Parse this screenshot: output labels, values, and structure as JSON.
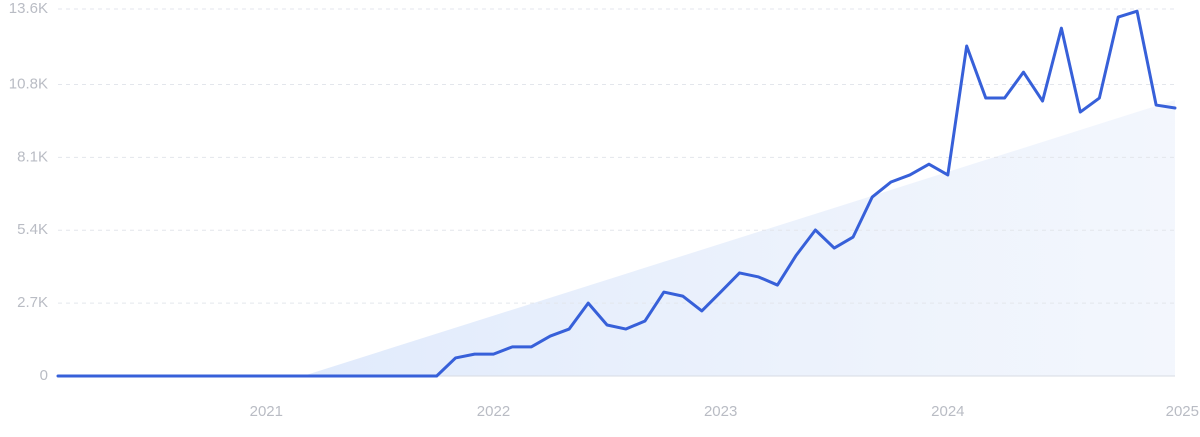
{
  "chart_data": {
    "type": "line",
    "color": "#3760d9",
    "x": [
      2020.083,
      2020.167,
      2020.25,
      2020.333,
      2020.417,
      2020.5,
      2020.583,
      2020.667,
      2020.75,
      2020.833,
      2020.917,
      2021,
      2021.083,
      2021.167,
      2021.25,
      2021.333,
      2021.417,
      2021.5,
      2021.583,
      2021.667,
      2021.75,
      2021.833,
      2021.917,
      2022,
      2022.083,
      2022.167,
      2022.25,
      2022.333,
      2022.417,
      2022.5,
      2022.583,
      2022.667,
      2022.75,
      2022.833,
      2022.917,
      2023,
      2023.083,
      2023.167,
      2023.25,
      2023.333,
      2023.417,
      2023.5,
      2023.583,
      2023.667,
      2023.75,
      2023.833,
      2023.917,
      2024,
      2024.083,
      2024.167,
      2024.25,
      2024.333,
      2024.417,
      2024.5,
      2024.583,
      2024.667,
      2024.75,
      2024.833,
      2024.917,
      2025
    ],
    "values": [
      0,
      0,
      0,
      0,
      0,
      0,
      0,
      0,
      0,
      0,
      0,
      0,
      0,
      0,
      0,
      0,
      0,
      0,
      0,
      0,
      0,
      670,
      810,
      810,
      1080,
      1080,
      1480,
      1740,
      2700,
      1890,
      1740,
      2040,
      3110,
      2960,
      2410,
      3110,
      3820,
      3670,
      3370,
      4480,
      5410,
      4740,
      5150,
      6630,
      7190,
      7450,
      7850,
      7450,
      12230,
      10300,
      10300,
      11260,
      10190,
      12890,
      9780,
      10300,
      13300,
      13520,
      10040,
      9930
    ],
    "xlim": [
      2020.083,
      2025
    ],
    "xticks": [
      2021,
      2022,
      2023,
      2024,
      2025
    ],
    "ylim": [
      0,
      13600
    ],
    "yticks": [
      0,
      {
        "value": 2700,
        "label": "2.7K"
      },
      {
        "value": 5400,
        "label": "5.4K"
      },
      {
        "value": 8100,
        "label": "8.1K"
      },
      {
        "value": 10800,
        "label": "10.8K"
      },
      {
        "value": 13600,
        "label": "13.6K"
      }
    ],
    "grid": true
  }
}
